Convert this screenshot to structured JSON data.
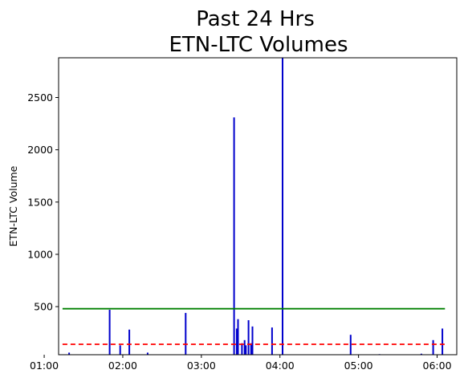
{
  "chart_data": {
    "type": "bar",
    "title_lines": [
      "Past 24 Hrs",
      "ETN-LTC Volumes"
    ],
    "xlabel": "",
    "ylabel": "ETN-LTC Volume",
    "x_unit": "time",
    "xlim": [
      "01:11",
      "06:15"
    ],
    "ylim": [
      40,
      2880
    ],
    "yticks": [
      500,
      1000,
      1500,
      2000,
      2500
    ],
    "xticks": [
      "01:00",
      "02:00",
      "03:00",
      "04:00",
      "05:00",
      "06:00"
    ],
    "grid": false,
    "bar_color": "#0000cc",
    "points": [
      {
        "t": "01:19",
        "v": 60
      },
      {
        "t": "01:50",
        "v": 470
      },
      {
        "t": "01:58",
        "v": 130
      },
      {
        "t": "02:05",
        "v": 280
      },
      {
        "t": "02:19",
        "v": 60
      },
      {
        "t": "02:48",
        "v": 440
      },
      {
        "t": "03:25",
        "v": 2310
      },
      {
        "t": "03:27",
        "v": 290
      },
      {
        "t": "03:28",
        "v": 380
      },
      {
        "t": "03:31",
        "v": 150
      },
      {
        "t": "03:33",
        "v": 180
      },
      {
        "t": "03:34",
        "v": 130
      },
      {
        "t": "03:36",
        "v": 370
      },
      {
        "t": "03:38",
        "v": 150
      },
      {
        "t": "03:39",
        "v": 310
      },
      {
        "t": "03:54",
        "v": 300
      },
      {
        "t": "04:02",
        "v": 2880
      },
      {
        "t": "04:54",
        "v": 230
      },
      {
        "t": "05:16",
        "v": 45
      },
      {
        "t": "05:48",
        "v": 50
      },
      {
        "t": "05:57",
        "v": 180
      },
      {
        "t": "06:04",
        "v": 290
      }
    ],
    "reference_lines": [
      {
        "name": "",
        "value": 480,
        "color": "#008000",
        "style": "solid",
        "from": "01:14",
        "to": "06:06"
      },
      {
        "name": "",
        "value": 140,
        "color": "#ff0000",
        "style": "dashed",
        "from": "01:14",
        "to": "06:06"
      }
    ]
  }
}
